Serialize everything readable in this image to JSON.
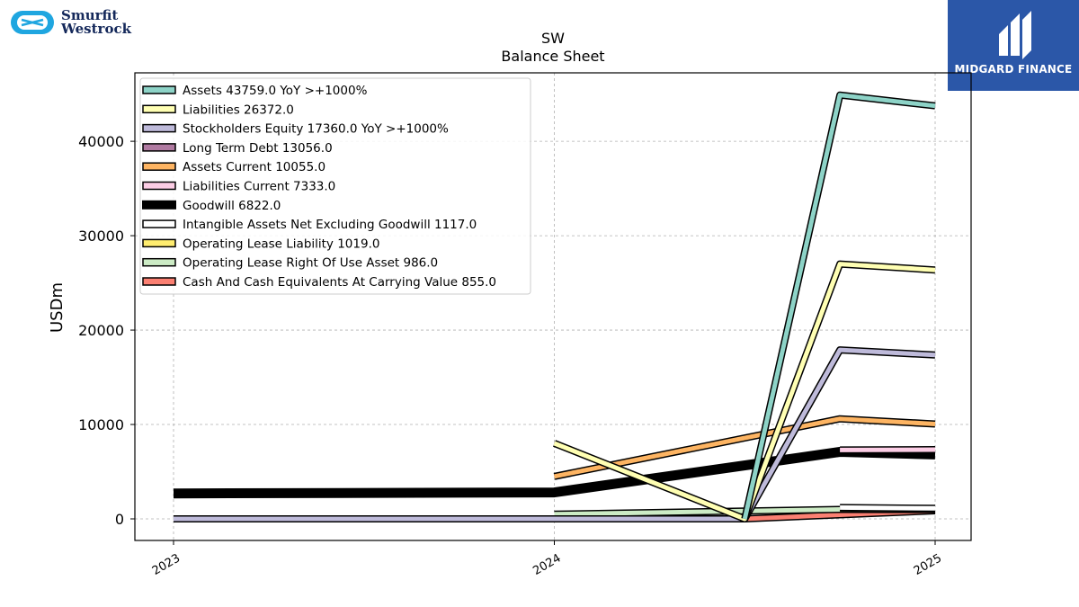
{
  "brand": {
    "left_logo_line1": "Smurfit",
    "left_logo_line2": "Westrock",
    "right_logo_name": "MIDGARD FINANCE",
    "right_logo_bg": "#2b57a8"
  },
  "chart_data": {
    "type": "line",
    "title": "SW",
    "subtitle": "Balance  Sheet",
    "ylabel": "USDm",
    "xlabel": "",
    "x_ticks": [
      "2023",
      "2024",
      "2025"
    ],
    "y_ticks": [
      "0",
      "10000",
      "20000",
      "30000",
      "40000"
    ],
    "xlim": [
      2023.0,
      2025.0
    ],
    "ylim": [
      -2300,
      47000
    ],
    "grid": true,
    "legend_position": "top-left",
    "series": [
      {
        "name": "Assets  43759.0 YoY >+1000%",
        "color": "#8dd3c7",
        "x": [
          2024.5,
          2024.75,
          2025.0
        ],
        "values": [
          0,
          44900,
          43759
        ]
      },
      {
        "name": "Liabilities  26372.0",
        "color": "#ffffb3",
        "x": [
          2024.0,
          2024.5,
          2024.75,
          2025.0
        ],
        "values": [
          8000,
          0,
          27000,
          26372
        ]
      },
      {
        "name": "Stockholders Equity  17360.0 YoY >+1000%",
        "color": "#bebada",
        "x": [
          2023.0,
          2024.0,
          2024.5,
          2024.75,
          2025.0
        ],
        "values": [
          0,
          0,
          0,
          17900,
          17360
        ]
      },
      {
        "name": "Long Term Debt  13056.0",
        "color": "#b07aa1",
        "x": [],
        "values": []
      },
      {
        "name": "Assets Current  10055.0",
        "color": "#fdb462",
        "x": [
          2024.0,
          2024.75,
          2025.0
        ],
        "values": [
          4500,
          10600,
          10055
        ]
      },
      {
        "name": "Liabilities Current  7333.0",
        "color": "#fccde5",
        "x": [
          2024.75,
          2025.0
        ],
        "values": [
          7300,
          7333
        ]
      },
      {
        "name": "Goodwill  6822.0",
        "color": "#000000",
        "x": [
          2023.0,
          2024.0,
          2024.75,
          2025.0
        ],
        "values": [
          2700,
          2800,
          7100,
          6822
        ]
      },
      {
        "name": "Intangible Assets Net Excluding Goodwill  1117.0",
        "color": "#ffffff",
        "x": [
          2024.75,
          2025.0
        ],
        "values": [
          1200,
          1117
        ]
      },
      {
        "name": "Operating Lease Liability  1019.0",
        "color": "#ffed6f",
        "x": [
          2024.75,
          2025.0
        ],
        "values": [
          1050,
          1019
        ]
      },
      {
        "name": "Operating Lease Right Of Use Asset  986.0",
        "color": "#ccebc5",
        "x": [
          2024.0,
          2024.75,
          2025.0
        ],
        "values": [
          500,
          1000,
          986
        ]
      },
      {
        "name": "Cash And Cash Equivalents At Carrying Value  855.0",
        "color": "#fb8072",
        "x": [
          2024.0,
          2024.5,
          2025.0
        ],
        "values": [
          0,
          0,
          855
        ]
      }
    ]
  }
}
